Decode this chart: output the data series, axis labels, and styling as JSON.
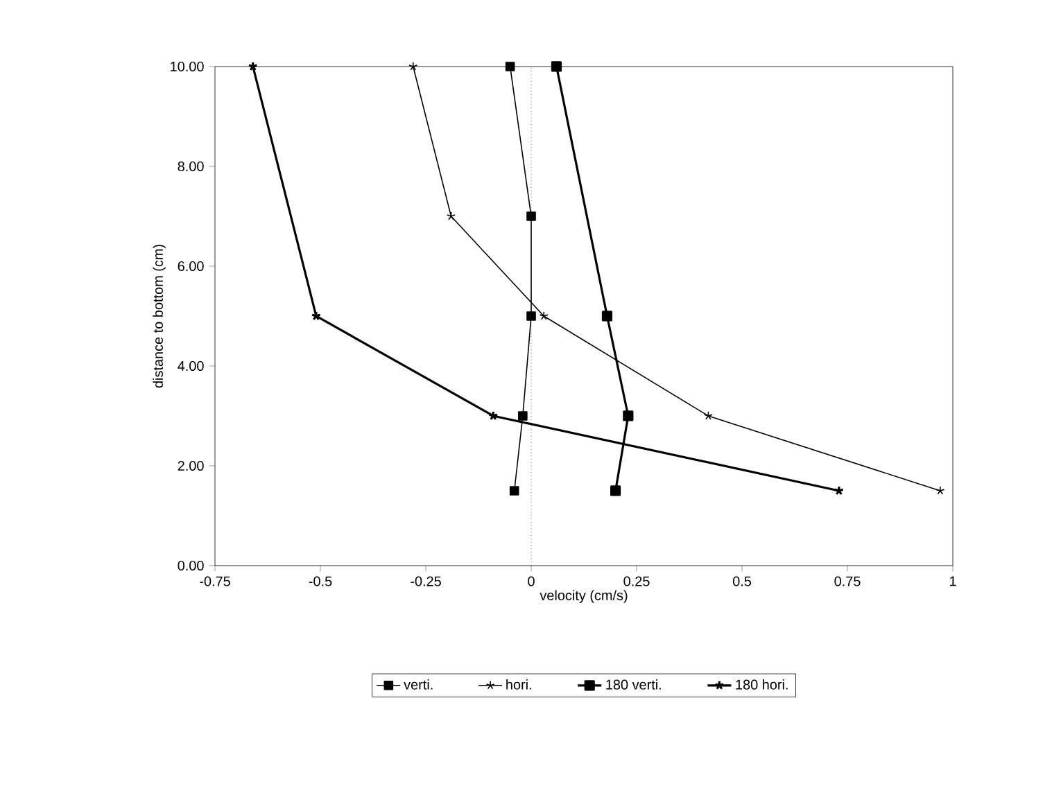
{
  "chart_data": {
    "type": "line",
    "xlabel": "velocity (cm/s)",
    "ylabel": "distance to bottom (cm)",
    "x": [
      10,
      7,
      5,
      3,
      1.5
    ],
    "orientation": "horizontal",
    "xlim": [
      -0.75,
      1
    ],
    "xticks": [
      -0.75,
      -0.5,
      -0.25,
      0,
      0.25,
      0.5,
      0.75,
      1
    ],
    "ylim": [
      0,
      10
    ],
    "yticks": [
      {
        "value": 0,
        "label": "0.00"
      },
      {
        "value": 2,
        "label": "2.00"
      },
      {
        "value": 4,
        "label": "4.00"
      },
      {
        "value": 6,
        "label": "6.00"
      },
      {
        "value": 8,
        "label": "8.00"
      },
      {
        "value": 10,
        "label": "10.00"
      }
    ],
    "series": [
      {
        "name": "verti.",
        "color": "#000000",
        "marker": "square",
        "values": [
          -0.05,
          0.0,
          0.0,
          -0.02,
          -0.04
        ]
      },
      {
        "name": "hori.",
        "color": "#000000",
        "marker": "cross",
        "values": [
          -0.28,
          -0.19,
          0.03,
          0.42,
          0.97
        ]
      },
      {
        "name": "180 verti.",
        "color": "#000000",
        "marker": "square",
        "values": [
          0.06,
          null,
          0.18,
          0.23,
          0.2
        ]
      },
      {
        "name": "180 hori.",
        "color": "#000000",
        "marker": "cross",
        "values": [
          -0.66,
          null,
          -0.51,
          -0.09,
          0.73
        ]
      }
    ],
    "ref_lines": [
      {
        "axis": "x",
        "value": 0,
        "line_style": "dotted"
      }
    ],
    "grid": false,
    "legend": "bottom",
    "line_style": "solid"
  }
}
